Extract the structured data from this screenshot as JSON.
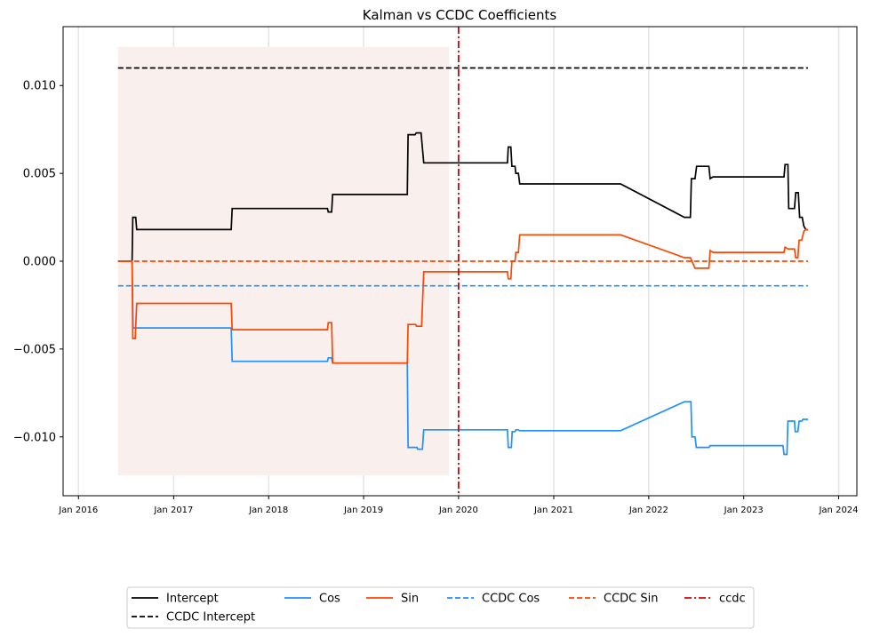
{
  "chart_data": {
    "type": "line",
    "title": "Kalman vs CCDC Coefficients",
    "xlabel": "",
    "ylabel": "",
    "xlim": [
      "2015-11-03",
      "2024-03-11"
    ],
    "ylim": [
      -0.01335,
      0.01335
    ],
    "x_ticks": [
      {
        "date": "2016-01-01",
        "label": "Jan 2016"
      },
      {
        "date": "2017-01-01",
        "label": "Jan 2017"
      },
      {
        "date": "2018-01-01",
        "label": "Jan 2018"
      },
      {
        "date": "2019-01-01",
        "label": "Jan 2019"
      },
      {
        "date": "2020-01-01",
        "label": "Jan 2020"
      },
      {
        "date": "2021-01-01",
        "label": "Jan 2021"
      },
      {
        "date": "2022-01-01",
        "label": "Jan 2022"
      },
      {
        "date": "2023-01-01",
        "label": "Jan 2023"
      },
      {
        "date": "2024-01-01",
        "label": "Jan 2024"
      }
    ],
    "y_ticks": [
      {
        "value": 0.01,
        "label": "0.010"
      },
      {
        "value": 0.005,
        "label": "0.005"
      },
      {
        "value": 0.0,
        "label": "0.000"
      },
      {
        "value": -0.005,
        "label": "−0.005"
      },
      {
        "value": -0.01,
        "label": "−0.010"
      }
    ],
    "grid": "vertical",
    "legend_placement": "bottom-center",
    "shaded_region": {
      "x": [
        "2016-06-01",
        "2019-11-25"
      ],
      "y": [
        -0.0122,
        0.0122
      ],
      "color": "#f9efec"
    },
    "vertical_line": {
      "name": "ccdc",
      "x": "2020-01-01",
      "color": "#dd0000",
      "dash": "dashdot"
    },
    "series": [
      {
        "name": "Intercept",
        "color": "#000000",
        "dash": "solid",
        "points": [
          [
            "2016-06-01",
            0.0
          ],
          [
            "2016-07-25",
            0.0
          ],
          [
            "2016-07-28",
            0.0025
          ],
          [
            "2016-08-08",
            0.0025
          ],
          [
            "2016-08-12",
            0.0018
          ],
          [
            "2017-08-10",
            0.0018
          ],
          [
            "2017-08-14",
            0.003
          ],
          [
            "2018-08-15",
            0.003
          ],
          [
            "2018-08-18",
            0.0028
          ],
          [
            "2018-08-31",
            0.0028
          ],
          [
            "2018-09-04",
            0.0038
          ],
          [
            "2019-06-18",
            0.0038
          ],
          [
            "2019-06-21",
            0.0072
          ],
          [
            "2019-07-18",
            0.0072
          ],
          [
            "2019-07-22",
            0.0073
          ],
          [
            "2019-08-10",
            0.0073
          ],
          [
            "2019-08-20",
            0.0056
          ],
          [
            "2020-07-07",
            0.0056
          ],
          [
            "2020-07-10",
            0.0065
          ],
          [
            "2020-07-20",
            0.0065
          ],
          [
            "2020-07-24",
            0.0054
          ],
          [
            "2020-08-05",
            0.0054
          ],
          [
            "2020-08-08",
            0.005
          ],
          [
            "2020-08-18",
            0.005
          ],
          [
            "2020-08-23",
            0.0044
          ],
          [
            "2021-09-15",
            0.0044
          ],
          [
            "2022-05-18",
            0.0025
          ],
          [
            "2022-06-10",
            0.0025
          ],
          [
            "2022-06-14",
            0.0047
          ],
          [
            "2022-06-28",
            0.0047
          ],
          [
            "2022-07-04",
            0.0054
          ],
          [
            "2022-08-20",
            0.0054
          ],
          [
            "2022-08-25",
            0.0047
          ],
          [
            "2022-09-05",
            0.0048
          ],
          [
            "2023-06-05",
            0.0048
          ],
          [
            "2023-06-09",
            0.0055
          ],
          [
            "2023-06-20",
            0.0055
          ],
          [
            "2023-06-23",
            0.003
          ],
          [
            "2023-07-15",
            0.003
          ],
          [
            "2023-07-20",
            0.0039
          ],
          [
            "2023-07-30",
            0.0039
          ],
          [
            "2023-08-04",
            0.0025
          ],
          [
            "2023-08-14",
            0.0025
          ],
          [
            "2023-08-20",
            0.002
          ],
          [
            "2023-08-28",
            0.0018
          ],
          [
            "2023-09-05",
            0.0018
          ]
        ]
      },
      {
        "name": "CCDC Intercept",
        "color": "#000000",
        "dash": "dashed",
        "points": [
          [
            "2016-06-01",
            0.011
          ],
          [
            "2023-09-05",
            0.011
          ]
        ]
      },
      {
        "name": "Cos",
        "color": "#1e90ff",
        "dash": "solid",
        "points": [
          [
            "2016-06-01",
            0.0
          ],
          [
            "2016-07-25",
            0.0
          ],
          [
            "2016-07-29",
            -0.0038
          ],
          [
            "2017-08-10",
            -0.0038
          ],
          [
            "2017-08-14",
            -0.0057
          ],
          [
            "2018-08-15",
            -0.0057
          ],
          [
            "2018-08-18",
            -0.0055
          ],
          [
            "2018-08-31",
            -0.0055
          ],
          [
            "2018-09-04",
            -0.0058
          ],
          [
            "2019-06-18",
            -0.0058
          ],
          [
            "2019-06-21",
            -0.0106
          ],
          [
            "2019-07-25",
            -0.0106
          ],
          [
            "2019-07-28",
            -0.0107
          ],
          [
            "2019-08-15",
            -0.0107
          ],
          [
            "2019-08-20",
            -0.0096
          ],
          [
            "2020-07-07",
            -0.0096
          ],
          [
            "2020-07-10",
            -0.0106
          ],
          [
            "2020-07-22",
            -0.0106
          ],
          [
            "2020-07-25",
            -0.0097
          ],
          [
            "2020-08-05",
            -0.0097
          ],
          [
            "2020-08-08",
            -0.0096
          ],
          [
            "2020-08-18",
            -0.0096
          ],
          [
            "2020-08-23",
            -0.00965
          ],
          [
            "2021-09-15",
            -0.00965
          ],
          [
            "2022-05-18",
            -0.008
          ],
          [
            "2022-06-12",
            -0.008
          ],
          [
            "2022-06-16",
            -0.01
          ],
          [
            "2022-06-28",
            -0.01
          ],
          [
            "2022-07-03",
            -0.0106
          ],
          [
            "2022-08-20",
            -0.0106
          ],
          [
            "2022-08-25",
            -0.0105
          ],
          [
            "2023-06-01",
            -0.0105
          ],
          [
            "2023-06-05",
            -0.011
          ],
          [
            "2023-06-16",
            -0.011
          ],
          [
            "2023-06-20",
            -0.0091
          ],
          [
            "2023-07-15",
            -0.0091
          ],
          [
            "2023-07-18",
            -0.0097
          ],
          [
            "2023-07-28",
            -0.0097
          ],
          [
            "2023-08-02",
            -0.0091
          ],
          [
            "2023-08-12",
            -0.0091
          ],
          [
            "2023-08-17",
            -0.009
          ],
          [
            "2023-09-05",
            -0.009
          ]
        ]
      },
      {
        "name": "Sin",
        "color": "#ff4500",
        "dash": "solid",
        "points": [
          [
            "2016-06-01",
            0.0
          ],
          [
            "2016-07-25",
            0.0
          ],
          [
            "2016-07-28",
            -0.0044
          ],
          [
            "2016-08-06",
            -0.0044
          ],
          [
            "2016-08-12",
            -0.0024
          ],
          [
            "2017-08-10",
            -0.0024
          ],
          [
            "2017-08-14",
            -0.0039
          ],
          [
            "2018-08-15",
            -0.0039
          ],
          [
            "2018-08-18",
            -0.0035
          ],
          [
            "2018-08-31",
            -0.0035
          ],
          [
            "2018-09-04",
            -0.0058
          ],
          [
            "2019-06-18",
            -0.0058
          ],
          [
            "2019-06-21",
            -0.0036
          ],
          [
            "2019-07-20",
            -0.0036
          ],
          [
            "2019-07-23",
            -0.0037
          ],
          [
            "2019-08-12",
            -0.0037
          ],
          [
            "2019-08-20",
            -0.0006
          ],
          [
            "2020-07-07",
            -0.0006
          ],
          [
            "2020-07-10",
            -0.001
          ],
          [
            "2020-07-20",
            -0.001
          ],
          [
            "2020-07-24",
            0.0
          ],
          [
            "2020-08-05",
            0.0
          ],
          [
            "2020-08-08",
            0.0005
          ],
          [
            "2020-08-18",
            0.0005
          ],
          [
            "2020-08-23",
            0.0015
          ],
          [
            "2021-09-15",
            0.0015
          ],
          [
            "2022-05-18",
            0.0002
          ],
          [
            "2022-06-10",
            0.0002
          ],
          [
            "2022-06-28",
            -0.0004
          ],
          [
            "2022-08-20",
            -0.0004
          ],
          [
            "2022-08-25",
            0.0006
          ],
          [
            "2022-09-05",
            0.0005
          ],
          [
            "2023-06-05",
            0.0005
          ],
          [
            "2023-06-09",
            0.0008
          ],
          [
            "2023-06-20",
            0.0007
          ],
          [
            "2023-07-15",
            0.0007
          ],
          [
            "2023-07-20",
            0.0002
          ],
          [
            "2023-07-28",
            0.0002
          ],
          [
            "2023-08-02",
            0.0012
          ],
          [
            "2023-08-12",
            0.0012
          ],
          [
            "2023-08-20",
            0.0017
          ],
          [
            "2023-08-28",
            0.0018
          ],
          [
            "2023-09-05",
            0.0018
          ]
        ]
      },
      {
        "name": "CCDC Cos",
        "color": "#1e90ff",
        "dash": "dashed",
        "points": [
          [
            "2016-06-01",
            -0.0014
          ],
          [
            "2023-09-05",
            -0.0014
          ]
        ]
      },
      {
        "name": "CCDC Sin",
        "color": "#ff4500",
        "dash": "dashed",
        "points": [
          [
            "2016-06-01",
            0.0
          ],
          [
            "2023-09-05",
            0.0
          ]
        ]
      }
    ],
    "legend": [
      {
        "name": "Intercept",
        "color": "#000000",
        "dash": "solid"
      },
      {
        "name": "CCDC Intercept",
        "color": "#000000",
        "dash": "dashed"
      },
      {
        "name": "Cos",
        "color": "#1e90ff",
        "dash": "solid"
      },
      {
        "name": "Sin",
        "color": "#ff4500",
        "dash": "solid"
      },
      {
        "name": "CCDC Cos",
        "color": "#1e90ff",
        "dash": "dashed"
      },
      {
        "name": "CCDC Sin",
        "color": "#ff4500",
        "dash": "dashed"
      },
      {
        "name": "ccdc",
        "color": "#dd0000",
        "dash": "dashdot"
      }
    ]
  }
}
